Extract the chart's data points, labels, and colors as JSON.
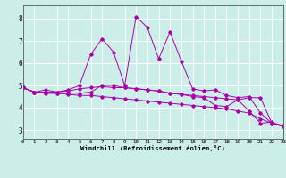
{
  "xlabel": "Windchill (Refroidissement éolien,°C)",
  "background_color": "#cceee8",
  "line_color": "#aa00aa",
  "grid_color": "#ffffff",
  "x_ticks": [
    0,
    1,
    2,
    3,
    4,
    5,
    6,
    7,
    8,
    9,
    10,
    11,
    12,
    13,
    14,
    15,
    16,
    17,
    18,
    19,
    20,
    21,
    22,
    23
  ],
  "y_ticks": [
    3,
    4,
    5,
    6,
    7,
    8
  ],
  "ylim": [
    2.6,
    8.6
  ],
  "xlim": [
    0,
    23
  ],
  "series": [
    {
      "x": [
        0,
        1,
        2,
        3,
        4,
        5,
        6,
        7,
        8,
        9,
        10,
        11,
        12,
        13,
        14,
        15,
        16,
        17,
        18,
        19,
        20,
        21,
        22,
        23
      ],
      "y": [
        4.9,
        4.7,
        4.8,
        4.7,
        4.8,
        5.0,
        6.4,
        7.1,
        6.5,
        5.0,
        8.1,
        7.6,
        6.2,
        7.4,
        6.1,
        4.85,
        4.75,
        4.8,
        4.55,
        4.45,
        4.5,
        3.75,
        3.3,
        3.2
      ]
    },
    {
      "x": [
        0,
        1,
        2,
        3,
        4,
        5,
        6,
        7,
        8,
        9,
        10,
        11,
        12,
        13,
        14,
        15,
        16,
        17,
        18,
        19,
        20,
        21,
        22,
        23
      ],
      "y": [
        4.9,
        4.7,
        4.7,
        4.7,
        4.75,
        4.85,
        4.9,
        4.95,
        4.9,
        4.9,
        4.85,
        4.8,
        4.75,
        4.65,
        4.6,
        4.55,
        4.5,
        4.45,
        4.4,
        4.35,
        4.45,
        4.45,
        3.3,
        3.2
      ]
    },
    {
      "x": [
        0,
        1,
        2,
        3,
        4,
        5,
        6,
        7,
        8,
        9,
        10,
        11,
        12,
        13,
        14,
        15,
        16,
        17,
        18,
        19,
        20,
        21,
        22,
        23
      ],
      "y": [
        4.9,
        4.7,
        4.65,
        4.65,
        4.65,
        4.65,
        4.7,
        5.0,
        5.0,
        4.9,
        4.85,
        4.8,
        4.75,
        4.65,
        4.6,
        4.5,
        4.45,
        4.1,
        4.05,
        4.35,
        3.85,
        3.3,
        3.35,
        3.15
      ]
    },
    {
      "x": [
        0,
        1,
        2,
        3,
        4,
        5,
        6,
        7,
        8,
        9,
        10,
        11,
        12,
        13,
        14,
        15,
        16,
        17,
        18,
        19,
        20,
        21,
        22,
        23
      ],
      "y": [
        4.9,
        4.7,
        4.65,
        4.65,
        4.6,
        4.55,
        4.55,
        4.5,
        4.45,
        4.4,
        4.35,
        4.3,
        4.25,
        4.2,
        4.15,
        4.1,
        4.05,
        4.0,
        3.95,
        3.85,
        3.75,
        3.5,
        3.3,
        3.15
      ]
    }
  ]
}
